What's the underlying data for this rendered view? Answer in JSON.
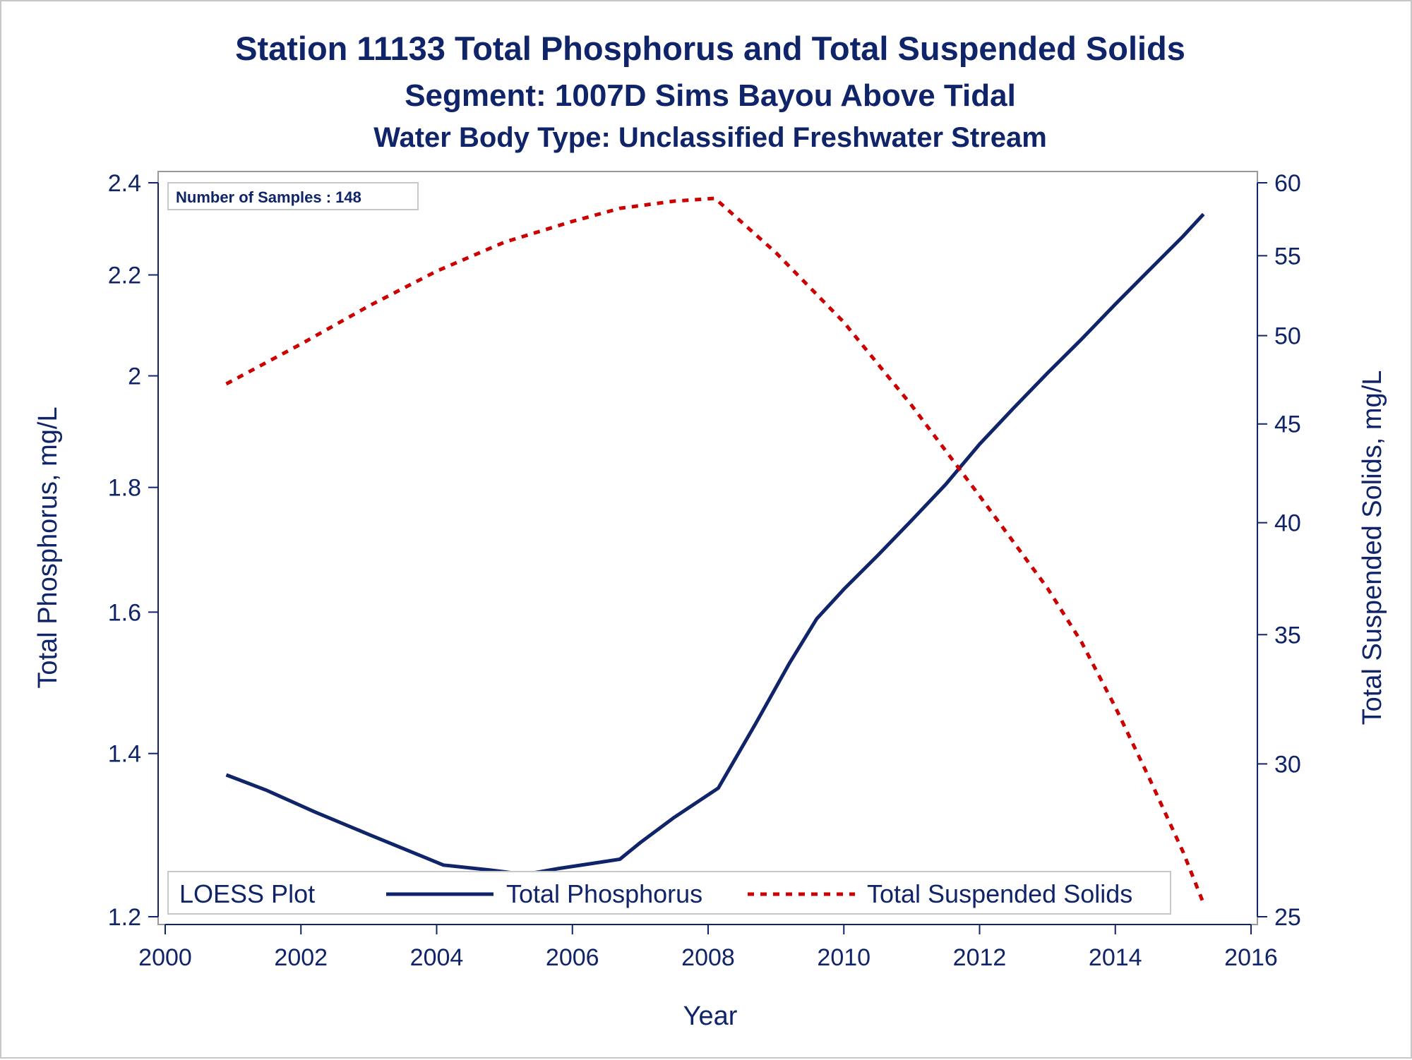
{
  "titles": {
    "line1": "Station 11133  Total Phosphorus and Total Suspended Solids",
    "line2": "Segment: 1007D  Sims Bayou Above Tidal",
    "line3": "Water Body Type: Unclassified Freshwater Stream"
  },
  "inset": {
    "text": "Number of Samples : 148"
  },
  "legend": {
    "title": "LOESS Plot",
    "items": [
      "Total Phosphorus",
      "Total Suspended Solids"
    ]
  },
  "colors": {
    "phosphorus": "#10246a",
    "tss": "#cc0000",
    "axis": "#10246a",
    "frame": "#999999"
  },
  "chart_data": {
    "type": "line",
    "xlabel": "Year",
    "ylabel": "Total Phosphorus, mg/L",
    "y2label": "Total Suspended Solids, mg/L",
    "xlim": [
      2000,
      2016
    ],
    "x_ticks": [
      "2000",
      "2002",
      "2004",
      "2006",
      "2008",
      "2010",
      "2012",
      "2014",
      "2016"
    ],
    "ylim": [
      1.2,
      2.4
    ],
    "y_scale": "log",
    "y_ticks": [
      "1.2",
      "1.4",
      "1.6",
      "1.8",
      "2",
      "2.2",
      "2.4"
    ],
    "y2lim": [
      25,
      60
    ],
    "y2_scale": "log",
    "y2_ticks": [
      "25",
      "30",
      "35",
      "40",
      "45",
      "50",
      "55",
      "60"
    ],
    "grid": false,
    "legend_position": "bottom-inside",
    "series": [
      {
        "name": "Total Phosphorus",
        "axis": "left",
        "style": "solid",
        "x": [
          2000.9,
          2001.5,
          2002.2,
          2003.0,
          2003.8,
          2004.1,
          2004.8,
          2005.3,
          2005.8,
          2006.3,
          2006.7,
          2007.0,
          2007.5,
          2008.15,
          2008.7,
          2009.2,
          2009.6,
          2010.0,
          2010.5,
          2011.0,
          2011.5,
          2012.0,
          2012.5,
          2013.0,
          2013.5,
          2014.0,
          2014.5,
          2015.0,
          2015.3
        ],
        "values": [
          1.372,
          1.352,
          1.325,
          1.297,
          1.27,
          1.26,
          1.254,
          1.249,
          1.256,
          1.262,
          1.267,
          1.287,
          1.318,
          1.355,
          1.44,
          1.525,
          1.59,
          1.635,
          1.688,
          1.745,
          1.805,
          1.875,
          1.94,
          2.005,
          2.07,
          2.14,
          2.21,
          2.282,
          2.33
        ]
      },
      {
        "name": "Total Suspended Solids",
        "axis": "right",
        "style": "dotted",
        "x": [
          2000.9,
          2002.0,
          2003.0,
          2004.0,
          2005.0,
          2006.0,
          2006.7,
          2007.5,
          2008.1,
          2009.0,
          2010.0,
          2011.0,
          2012.0,
          2013.0,
          2013.5,
          2014.0,
          2014.5,
          2015.0,
          2015.3
        ],
        "values": [
          47.2,
          49.5,
          51.8,
          54.0,
          55.9,
          57.3,
          58.2,
          58.7,
          58.9,
          55.2,
          50.8,
          46.0,
          41.3,
          37.0,
          34.7,
          32.1,
          29.5,
          27.0,
          25.4
        ]
      }
    ]
  }
}
